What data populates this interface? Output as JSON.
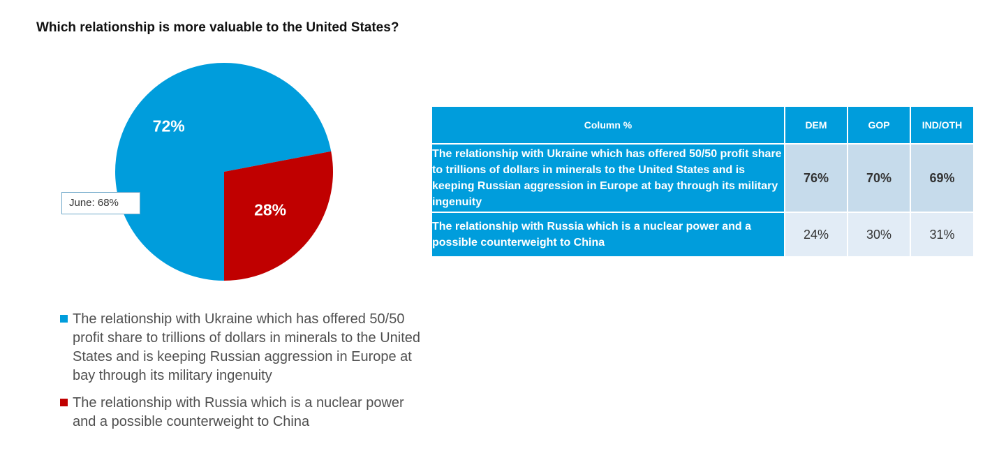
{
  "chart_data": [
    {
      "type": "pie",
      "title": "Which relationship is more valuable to the United States?",
      "categories": [
        "The relationship with Ukraine which has offered 50/50 profit share to trillions of dollars in minerals to the United States and is keeping Russian aggression in Europe at bay through its military ingenuity",
        "The relationship with Russia which is a nuclear power and a possible counterweight to China"
      ],
      "values": [
        72,
        28
      ],
      "value_labels": [
        "72%",
        "28%"
      ],
      "colors": [
        "#009ddc",
        "#c00000"
      ],
      "annotation": "June: 68%",
      "legend_position": "bottom"
    },
    {
      "type": "table",
      "header": [
        "Column %",
        "DEM",
        "GOP",
        "IND/OTH"
      ],
      "rows": [
        {
          "label": "The relationship with Ukraine which has offered 50/50 profit share to trillions of dollars in minerals to the United States and is keeping Russian aggression in Europe at bay through its military ingenuity",
          "values": [
            "76%",
            "70%",
            "69%"
          ]
        },
        {
          "label": "The relationship with Russia which is a nuclear power and a possible counterweight to China",
          "values": [
            "24%",
            "30%",
            "31%"
          ]
        }
      ]
    }
  ]
}
